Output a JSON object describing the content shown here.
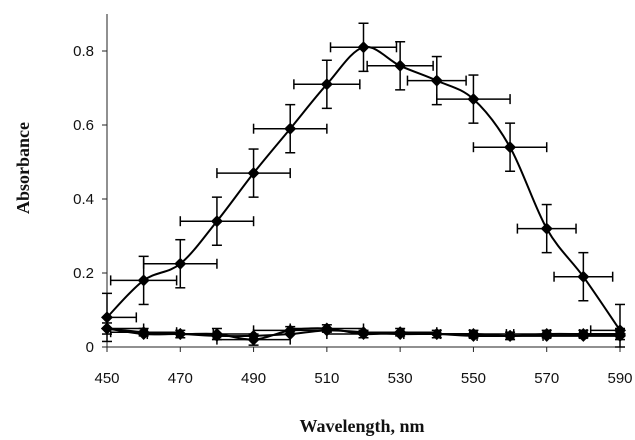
{
  "chart_data": {
    "type": "line",
    "title": "",
    "xlabel": "Wavelength, nm",
    "ylabel": "Absorbance",
    "xlim": [
      450,
      590
    ],
    "ylim": [
      0,
      0.9
    ],
    "xticks": [
      450,
      470,
      490,
      510,
      530,
      550,
      570,
      590
    ],
    "yticks": [
      0,
      0.2,
      0.4,
      0.6,
      0.8
    ],
    "grid": false,
    "legend": "none",
    "marker": "diamond",
    "color": "#000000",
    "series": [
      {
        "x": [
          450,
          460,
          470,
          480,
          490,
          500,
          510,
          520,
          530,
          540,
          550,
          560,
          570,
          580,
          590
        ],
        "y": [
          0.08,
          0.18,
          0.225,
          0.34,
          0.47,
          0.59,
          0.71,
          0.81,
          0.76,
          0.72,
          0.67,
          0.54,
          0.32,
          0.19,
          0.045
        ],
        "x_error": [
          8,
          9,
          10,
          10,
          10,
          10,
          9,
          9,
          9,
          8,
          10,
          10,
          8,
          8,
          8
        ],
        "y_error": [
          0.065,
          0.065,
          0.065,
          0.065,
          0.065,
          0.065,
          0.065,
          0.065,
          0.065,
          0.065,
          0.065,
          0.065,
          0.065,
          0.065,
          0.07
        ]
      },
      {
        "x": [
          450,
          460,
          470,
          480,
          490,
          500,
          510,
          520,
          530,
          540,
          550,
          560,
          570,
          580,
          590
        ],
        "y": [
          0.05,
          0.04,
          0.035,
          0.035,
          0.02,
          0.045,
          0.05,
          0.035,
          0.04,
          0.035,
          0.035,
          0.03,
          0.035,
          0.035,
          0.035
        ],
        "x_error": [
          10,
          9,
          9,
          10,
          10,
          10,
          10,
          10,
          10,
          9,
          9,
          9,
          9,
          9,
          9
        ],
        "y_error": [
          0.015,
          0.01,
          0.01,
          0.015,
          0.015,
          0.01,
          0.01,
          0.01,
          0.01,
          0.01,
          0.01,
          0.01,
          0.01,
          0.01,
          0.015
        ]
      },
      {
        "x": [
          450,
          460,
          470,
          480,
          490,
          500,
          510,
          520,
          530,
          540,
          550,
          560,
          570,
          580,
          590
        ],
        "y": [
          0.05,
          0.035,
          0.035,
          0.03,
          0.03,
          0.035,
          0.045,
          0.04,
          0.035,
          0.035,
          0.03,
          0.03,
          0.03,
          0.03,
          0.03
        ],
        "x_error": [
          0,
          0,
          0,
          0,
          0,
          0,
          0,
          0,
          0,
          0,
          0,
          0,
          0,
          0,
          0
        ],
        "y_error": [
          0,
          0,
          0,
          0,
          0,
          0,
          0,
          0,
          0,
          0,
          0,
          0,
          0,
          0,
          0
        ]
      }
    ]
  }
}
